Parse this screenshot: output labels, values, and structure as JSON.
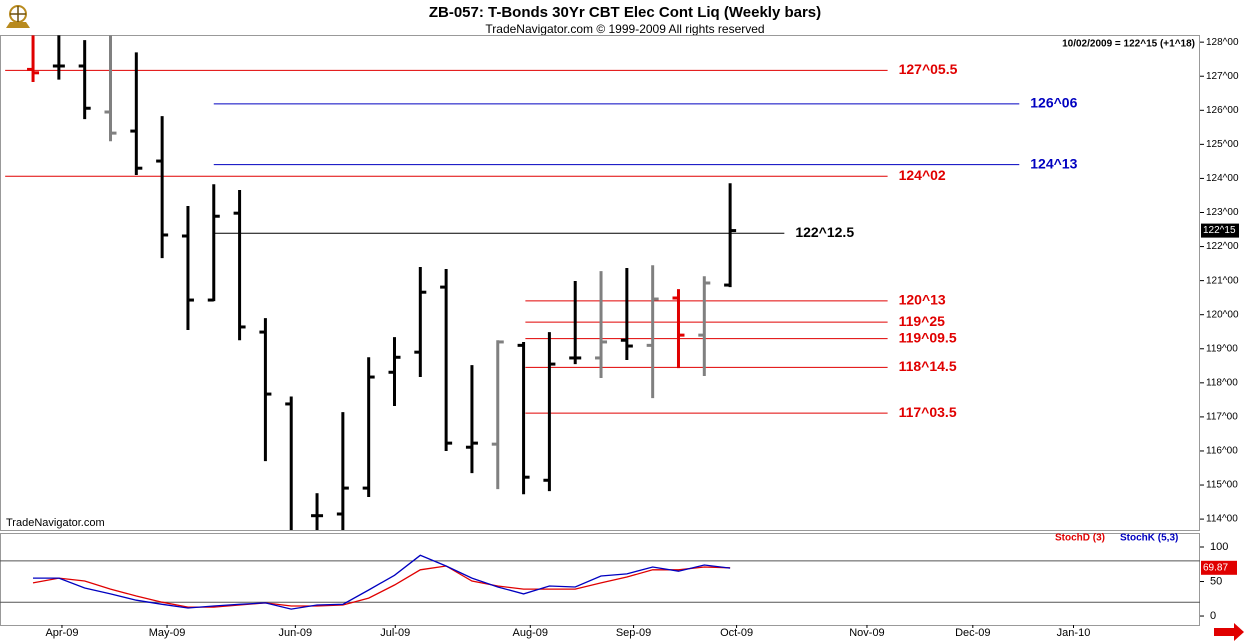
{
  "chart_data": [
    {
      "type": "ohlc",
      "title": "ZB-057:  T-Bonds 30Yr CBT Elec Cont Liq  (Weekly bars)",
      "subtitle": "TradeNavigator.com © 1999-2009 All rights reserved",
      "header_note": "10/02/2009 = 122^15 (+1^18)",
      "watermark": "TradeNavigator.com",
      "xlim": [
        -1.28,
        45.2
      ],
      "xticks": [
        {
          "value": 1.12,
          "label": "Apr-09"
        },
        {
          "value": 5.19,
          "label": "May-09"
        },
        {
          "value": 10.16,
          "label": "Jun-09"
        },
        {
          "value": 14.03,
          "label": "Jul-09"
        },
        {
          "value": 19.26,
          "label": "Aug-09"
        },
        {
          "value": 23.26,
          "label": "Sep-09"
        },
        {
          "value": 27.25,
          "label": "Oct-09"
        },
        {
          "value": 32.3,
          "label": "Nov-09"
        },
        {
          "value": 36.4,
          "label": "Dec-09"
        },
        {
          "value": 40.3,
          "label": "Jan-10"
        }
      ],
      "ylim": [
        113.68,
        128.21
      ],
      "yticks": [
        {
          "value": 114,
          "label": "114^00"
        },
        {
          "value": 115,
          "label": "115^00"
        },
        {
          "value": 116,
          "label": "116^00"
        },
        {
          "value": 117,
          "label": "117^00"
        },
        {
          "value": 118,
          "label": "118^00"
        },
        {
          "value": 119,
          "label": "119^00"
        },
        {
          "value": 120,
          "label": "120^00"
        },
        {
          "value": 121,
          "label": "121^00"
        },
        {
          "value": 122,
          "label": "122^00"
        },
        {
          "value": 123,
          "label": "123^00"
        },
        {
          "value": 124,
          "label": "124^00"
        },
        {
          "value": 125,
          "label": "125^00"
        },
        {
          "value": 126,
          "label": "126^00"
        },
        {
          "value": 127,
          "label": "127^00"
        },
        {
          "value": 128,
          "label": "128^00"
        }
      ],
      "open": [
        127.2,
        127.3,
        127.3,
        125.95,
        125.39,
        124.51,
        122.31,
        120.43,
        122.98,
        119.49,
        117.38,
        114.1,
        114.15,
        114.91,
        118.31,
        118.9,
        120.81,
        116.11,
        116.2,
        119.1,
        115.14,
        118.73,
        118.73,
        119.25,
        119.1,
        120.49,
        119.4,
        120.87
      ],
      "high": [
        128.2,
        128.2,
        128.06,
        128.2,
        127.7,
        125.83,
        123.19,
        123.83,
        123.66,
        119.9,
        117.6,
        114.76,
        117.14,
        118.75,
        119.34,
        121.4,
        121.34,
        118.52,
        119.25,
        119.2,
        119.49,
        120.99,
        121.28,
        121.37,
        121.45,
        120.75,
        121.13,
        123.86
      ],
      "low": [
        126.83,
        126.9,
        125.74,
        125.09,
        124.1,
        121.66,
        119.55,
        120.4,
        119.25,
        115.7,
        113.5,
        113.6,
        113.6,
        114.65,
        117.32,
        118.17,
        116.0,
        115.35,
        114.88,
        114.73,
        114.82,
        118.55,
        118.14,
        118.67,
        117.55,
        118.43,
        118.2,
        120.81
      ],
      "close": [
        127.1,
        127.3,
        126.06,
        125.33,
        124.3,
        122.34,
        120.43,
        122.89,
        119.64,
        117.67,
        113.6,
        114.1,
        114.91,
        118.17,
        118.75,
        120.66,
        116.23,
        116.23,
        119.2,
        115.23,
        118.55,
        118.73,
        119.2,
        119.08,
        120.46,
        119.4,
        120.93,
        122.46875
      ],
      "bar_colors": [
        "#e00000",
        "#000000",
        "#000000",
        "#808080",
        "#000000",
        "#000000",
        "#000000",
        "#000000",
        "#000000",
        "#000000",
        "#000000",
        "#000000",
        "#000000",
        "#000000",
        "#000000",
        "#000000",
        "#000000",
        "#000000",
        "#808080",
        "#000000",
        "#000000",
        "#000000",
        "#808080",
        "#000000",
        "#808080",
        "#e00000",
        "#808080",
        "#000000"
      ],
      "levels": [
        {
          "value": 127.171875,
          "label": "127^05.5",
          "color": "#e00000"
        },
        {
          "value": 126.1875,
          "label": "126^06",
          "color": "#0000c0"
        },
        {
          "value": 124.40625,
          "label": "124^13",
          "color": "#0000c0"
        },
        {
          "value": 124.0625,
          "label": "124^02",
          "color": "#e00000"
        },
        {
          "value": 122.390625,
          "label": "122^12.5",
          "color": "#000000"
        },
        {
          "value": 120.40625,
          "label": "120^13",
          "color": "#e00000"
        },
        {
          "value": 119.78125,
          "label": "119^25",
          "color": "#e00000"
        },
        {
          "value": 119.296875,
          "label": "119^09.5",
          "color": "#e00000"
        },
        {
          "value": 118.453125,
          "label": "118^14.5",
          "color": "#e00000"
        },
        {
          "value": 117.109375,
          "label": "117^03.5",
          "color": "#e00000"
        }
      ],
      "last_marker": {
        "value": 122.46875,
        "label": "122^15",
        "color": "#000000"
      }
    },
    {
      "type": "line",
      "xlim": [
        -1.28,
        45.2
      ],
      "ylim": [
        -13,
        120.3
      ],
      "yticks": [
        0,
        50,
        100
      ],
      "reference_lines": [
        20,
        80
      ],
      "series": [
        {
          "name": "StochD (3)",
          "color": "#e00000",
          "values": [
            48,
            55,
            50.7,
            39,
            29,
            20,
            13,
            13,
            16,
            19,
            14.5,
            14.5,
            16,
            26,
            45,
            67,
            72.5,
            50.7,
            43.5,
            39,
            39,
            39,
            48,
            56.5,
            67,
            67,
            71,
            69.87
          ]
        },
        {
          "name": "StochK (5,3)",
          "color": "#0000c0",
          "values": [
            55,
            55,
            40.6,
            32,
            23,
            17,
            11.6,
            14.5,
            17,
            19,
            10,
            16,
            17,
            37.7,
            59,
            88,
            72.5,
            55,
            42,
            32,
            43.5,
            42,
            58,
            61,
            71,
            65,
            74,
            69.5
          ]
        }
      ],
      "last_marker": {
        "value": 69.87,
        "label": "69.87",
        "color": "#e00000"
      }
    }
  ]
}
